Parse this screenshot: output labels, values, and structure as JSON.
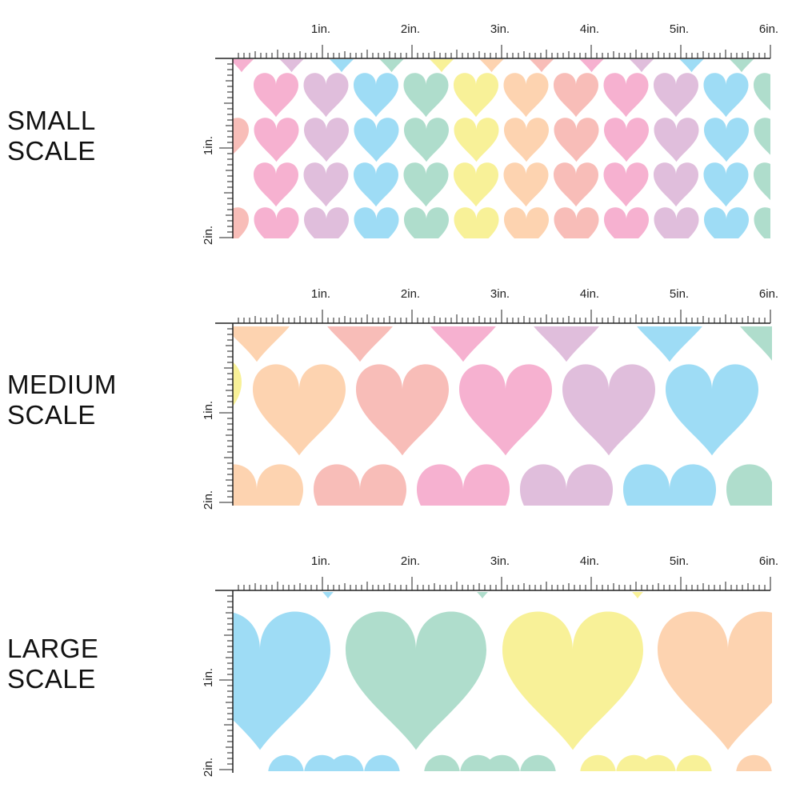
{
  "panels": [
    {
      "id": "small",
      "label_lines": [
        "SMALL",
        "SCALE"
      ],
      "pattern": "small-scale heart print",
      "ruler": {
        "top_labels": [
          "1in.",
          "2in.",
          "3in.",
          "4in.",
          "5in.",
          "6in."
        ],
        "side_labels": [
          "1in.",
          "2in."
        ]
      }
    },
    {
      "id": "medium",
      "label_lines": [
        "MEDIUM",
        "SCALE"
      ],
      "pattern": "medium-scale heart print",
      "ruler": {
        "top_labels": [
          "1in.",
          "2in.",
          "3in.",
          "4in.",
          "5in.",
          "6in."
        ],
        "side_labels": [
          "1in.",
          "2in."
        ]
      }
    },
    {
      "id": "large",
      "label_lines": [
        "LARGE",
        "SCALE"
      ],
      "pattern": "large-scale heart print",
      "ruler": {
        "top_labels": [
          "1in.",
          "2in.",
          "3in.",
          "4in.",
          "5in.",
          "6in."
        ],
        "side_labels": [
          "1in.",
          "2in."
        ]
      }
    }
  ],
  "palette": {
    "pink": "#f6b1d0",
    "lavender": "#e0bedc",
    "blue": "#9edcf5",
    "mint": "#afddcc",
    "yellow": "#f8f198",
    "peach": "#fdd3b0",
    "coral": "#f8bdb8"
  },
  "color_sequence": [
    "pink",
    "lavender",
    "blue",
    "mint",
    "yellow",
    "peach",
    "coral"
  ],
  "ruler_color": "#222222"
}
